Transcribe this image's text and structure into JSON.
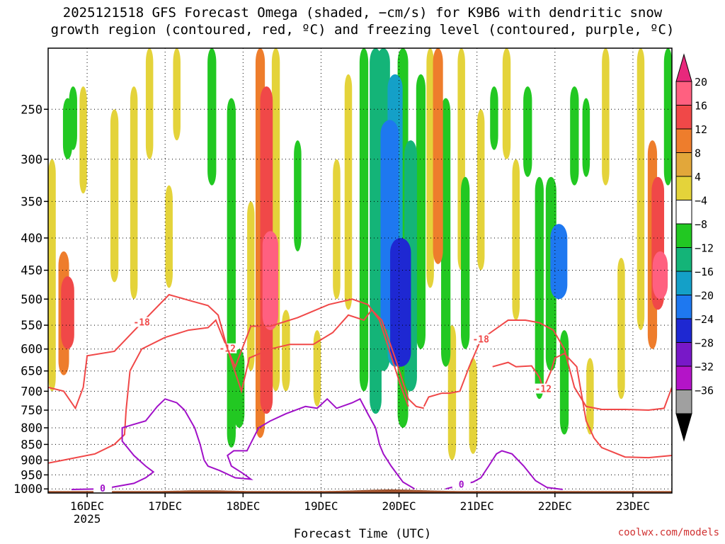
{
  "title": {
    "line1": "2025121518 GFS Forecast Omega (shaded, −cm/s) for K9B6 with dendritic snow",
    "line2": "growth region (contoured, red, ºC) and freezing level (contoured, purple, ºC)"
  },
  "watermark": "coolwx.com/models",
  "chart_data": {
    "type": "heatmap",
    "xlabel": "Forecast Time (UTC)",
    "ylabel": "",
    "x_ticks": [
      {
        "t": 0.5,
        "label": "16DEC",
        "sub": "2025"
      },
      {
        "t": 1.5,
        "label": "17DEC",
        "sub": ""
      },
      {
        "t": 2.5,
        "label": "18DEC",
        "sub": ""
      },
      {
        "t": 3.5,
        "label": "19DEC",
        "sub": ""
      },
      {
        "t": 4.5,
        "label": "20DEC",
        "sub": ""
      },
      {
        "t": 5.5,
        "label": "21DEC",
        "sub": ""
      },
      {
        "t": 6.5,
        "label": "22DEC",
        "sub": ""
      },
      {
        "t": 7.5,
        "label": "23DEC",
        "sub": ""
      }
    ],
    "y_ticks": [
      250,
      300,
      350,
      400,
      450,
      500,
      550,
      600,
      650,
      700,
      750,
      800,
      850,
      900,
      950,
      1000
    ],
    "ylim": [
      1015,
      200
    ],
    "colorbar": {
      "labels": [
        "20",
        "16",
        "12",
        "8",
        "4",
        "−4",
        "−8",
        "−12",
        "−16",
        "−20",
        "−24",
        "−28",
        "−32",
        "−36"
      ],
      "colors": [
        "#ff6080",
        "#f04848",
        "#ee7d2c",
        "#e2a73a",
        "#e4d33a",
        "#ffffff",
        "#22c822",
        "#14b478",
        "#14a0c8",
        "#1e78f0",
        "#1e28d2",
        "#7818c8",
        "#b414c8",
        "#a0a0a0"
      ],
      "top_color": "#e8287c",
      "bottom_color": "#000000"
    },
    "shading": [
      {
        "t": 0.2,
        "p0": 420,
        "p1": 660,
        "v": 10
      },
      {
        "t": 0.25,
        "p0": 460,
        "p1": 600,
        "v": 14
      },
      {
        "t": 0.05,
        "p0": 300,
        "p1": 700,
        "v": 5
      },
      {
        "t": 0.45,
        "p0": 230,
        "p1": 340,
        "v": 5
      },
      {
        "t": 0.25,
        "p0": 240,
        "p1": 300,
        "v": -8
      },
      {
        "t": 0.32,
        "p0": 230,
        "p1": 290,
        "v": -6
      },
      {
        "t": 0.85,
        "p0": 250,
        "p1": 470,
        "v": 6
      },
      {
        "t": 1.1,
        "p0": 230,
        "p1": 500,
        "v": 5
      },
      {
        "t": 1.3,
        "p0": 200,
        "p1": 300,
        "v": 5
      },
      {
        "t": 1.55,
        "p0": 330,
        "p1": 480,
        "v": 5
      },
      {
        "t": 1.65,
        "p0": 200,
        "p1": 280,
        "v": 5
      },
      {
        "t": 2.1,
        "p0": 200,
        "p1": 330,
        "v": -7
      },
      {
        "t": 2.35,
        "p0": 240,
        "p1": 860,
        "v": -7
      },
      {
        "t": 2.45,
        "p0": 600,
        "p1": 800,
        "v": -10
      },
      {
        "t": 2.6,
        "p0": 350,
        "p1": 650,
        "v": 5
      },
      {
        "t": 2.72,
        "p0": 200,
        "p1": 830,
        "v": 8
      },
      {
        "t": 2.8,
        "p0": 230,
        "p1": 760,
        "v": 13
      },
      {
        "t": 2.85,
        "p0": 390,
        "p1": 560,
        "v": 18
      },
      {
        "t": 2.92,
        "p0": 200,
        "p1": 700,
        "v": 6
      },
      {
        "t": 3.05,
        "p0": 520,
        "p1": 700,
        "v": 6
      },
      {
        "t": 3.2,
        "p0": 280,
        "p1": 420,
        "v": -5
      },
      {
        "t": 3.45,
        "p0": 560,
        "p1": 740,
        "v": 5
      },
      {
        "t": 3.7,
        "p0": 300,
        "p1": 500,
        "v": 5
      },
      {
        "t": 3.85,
        "p0": 220,
        "p1": 520,
        "v": 5
      },
      {
        "t": 4.05,
        "p0": 200,
        "p1": 700,
        "v": -7
      },
      {
        "t": 4.2,
        "p0": 200,
        "p1": 760,
        "v": -12
      },
      {
        "t": 4.3,
        "p0": 200,
        "p1": 650,
        "v": -14
      },
      {
        "t": 4.38,
        "p0": 260,
        "p1": 560,
        "v": -22
      },
      {
        "t": 4.45,
        "p0": 220,
        "p1": 640,
        "v": -17
      },
      {
        "t": 4.52,
        "p0": 400,
        "p1": 640,
        "v": -26
      },
      {
        "t": 4.55,
        "p0": 200,
        "p1": 800,
        "v": -10
      },
      {
        "t": 4.65,
        "p0": 280,
        "p1": 700,
        "v": -13
      },
      {
        "t": 4.78,
        "p0": 220,
        "p1": 600,
        "v": -8
      },
      {
        "t": 4.9,
        "p0": 200,
        "p1": 480,
        "v": 5
      },
      {
        "t": 5.0,
        "p0": 200,
        "p1": 440,
        "v": 9
      },
      {
        "t": 5.1,
        "p0": 240,
        "p1": 640,
        "v": -8
      },
      {
        "t": 5.18,
        "p0": 550,
        "p1": 900,
        "v": 6
      },
      {
        "t": 5.3,
        "p0": 200,
        "p1": 450,
        "v": 5
      },
      {
        "t": 5.35,
        "p0": 320,
        "p1": 600,
        "v": -7
      },
      {
        "t": 5.45,
        "p0": 620,
        "p1": 880,
        "v": 6
      },
      {
        "t": 5.55,
        "p0": 250,
        "p1": 450,
        "v": 5
      },
      {
        "t": 5.72,
        "p0": 230,
        "p1": 290,
        "v": -6
      },
      {
        "t": 5.88,
        "p0": 200,
        "p1": 300,
        "v": 6
      },
      {
        "t": 6.0,
        "p0": 300,
        "p1": 540,
        "v": 5
      },
      {
        "t": 6.15,
        "p0": 230,
        "p1": 320,
        "v": -7
      },
      {
        "t": 6.3,
        "p0": 320,
        "p1": 720,
        "v": -7
      },
      {
        "t": 6.45,
        "p0": 320,
        "p1": 650,
        "v": -10
      },
      {
        "t": 6.55,
        "p0": 380,
        "p1": 500,
        "v": -20
      },
      {
        "t": 6.62,
        "p0": 560,
        "p1": 820,
        "v": -7
      },
      {
        "t": 6.75,
        "p0": 230,
        "p1": 330,
        "v": -7
      },
      {
        "t": 6.9,
        "p0": 240,
        "p1": 320,
        "v": -5
      },
      {
        "t": 6.95,
        "p0": 620,
        "p1": 820,
        "v": 5
      },
      {
        "t": 7.15,
        "p0": 200,
        "p1": 330,
        "v": 5
      },
      {
        "t": 7.35,
        "p0": 430,
        "p1": 720,
        "v": 5
      },
      {
        "t": 7.6,
        "p0": 200,
        "p1": 560,
        "v": 5
      },
      {
        "t": 7.75,
        "p0": 280,
        "p1": 600,
        "v": 8
      },
      {
        "t": 7.82,
        "p0": 320,
        "p1": 520,
        "v": 13
      },
      {
        "t": 7.85,
        "p0": 420,
        "p1": 500,
        "v": 17
      },
      {
        "t": 7.95,
        "p0": 200,
        "p1": 330,
        "v": -6
      }
    ],
    "contours": [
      {
        "label": "-12",
        "color": "#f04848",
        "label_at": 12,
        "points": [
          [
            0.0,
            910
          ],
          [
            0.2,
            900
          ],
          [
            0.6,
            880
          ],
          [
            0.85,
            850
          ],
          [
            0.98,
            820
          ],
          [
            1.0,
            750
          ],
          [
            1.05,
            650
          ],
          [
            1.2,
            600
          ],
          [
            1.5,
            575
          ],
          [
            1.8,
            560
          ],
          [
            2.05,
            555
          ],
          [
            2.15,
            540
          ],
          [
            2.3,
            600
          ],
          [
            2.48,
            700
          ],
          [
            2.58,
            620
          ],
          [
            2.85,
            600
          ],
          [
            3.1,
            590
          ],
          [
            3.4,
            590
          ],
          [
            3.65,
            565
          ],
          [
            3.85,
            530
          ],
          [
            4.05,
            540
          ],
          [
            4.15,
            520
          ],
          [
            4.28,
            540
          ],
          [
            4.45,
            620
          ],
          [
            4.62,
            720
          ],
          [
            4.72,
            740
          ],
          [
            4.82,
            745
          ]
        ]
      },
      {
        "label": "-18",
        "color": "#f04848",
        "label_at": 6,
        "points": [
          [
            0.0,
            690
          ],
          [
            0.2,
            700
          ],
          [
            0.35,
            745
          ],
          [
            0.45,
            690
          ],
          [
            0.5,
            615
          ],
          [
            0.85,
            605
          ],
          [
            1.2,
            545
          ],
          [
            1.55,
            492
          ],
          [
            1.8,
            502
          ],
          [
            2.05,
            512
          ],
          [
            2.18,
            530
          ],
          [
            2.3,
            600
          ],
          [
            2.4,
            640
          ],
          [
            2.6,
            552
          ],
          [
            2.85,
            552
          ],
          [
            3.2,
            535
          ],
          [
            3.6,
            510
          ],
          [
            3.9,
            500
          ],
          [
            4.1,
            510
          ],
          [
            4.25,
            540
          ],
          [
            4.38,
            605
          ],
          [
            4.52,
            685
          ],
          [
            4.62,
            740
          ]
        ]
      },
      {
        "label": "-18",
        "color": "#f04848",
        "label_at": 6,
        "points": [
          [
            4.82,
            740
          ],
          [
            4.88,
            715
          ],
          [
            5.05,
            705
          ],
          [
            5.15,
            705
          ],
          [
            5.28,
            700
          ],
          [
            5.4,
            640
          ],
          [
            5.55,
            580
          ],
          [
            5.7,
            562
          ],
          [
            5.9,
            540
          ],
          [
            6.12,
            540
          ],
          [
            6.3,
            545
          ],
          [
            6.48,
            560
          ],
          [
            6.62,
            600
          ],
          [
            6.75,
            690
          ],
          [
            6.9,
            740
          ],
          [
            7.1,
            748
          ],
          [
            7.4,
            748
          ],
          [
            7.7,
            750
          ],
          [
            7.9,
            745
          ],
          [
            8.0,
            690
          ]
        ]
      },
      {
        "label": "-12",
        "color": "#f04848",
        "label_at": 5,
        "points": [
          [
            5.7,
            640
          ],
          [
            5.9,
            630
          ],
          [
            6.0,
            640
          ],
          [
            6.2,
            638
          ],
          [
            6.3,
            665
          ],
          [
            6.35,
            695
          ],
          [
            6.45,
            650
          ],
          [
            6.5,
            620
          ],
          [
            6.62,
            610
          ],
          [
            6.78,
            640
          ],
          [
            6.9,
            780
          ],
          [
            7.0,
            830
          ],
          [
            7.1,
            860
          ],
          [
            7.4,
            890
          ],
          [
            7.7,
            892
          ],
          [
            8.0,
            885
          ]
        ]
      },
      {
        "label": "0",
        "color": "#a010c8",
        "label_at": 1,
        "points": [
          [
            0.3,
            1002
          ],
          [
            0.7,
            1000
          ],
          [
            1.1,
            980
          ],
          [
            1.25,
            960
          ],
          [
            1.35,
            940
          ],
          [
            1.25,
            920
          ],
          [
            1.1,
            885
          ],
          [
            0.95,
            840
          ],
          [
            0.95,
            800
          ],
          [
            1.1,
            790
          ],
          [
            1.25,
            780
          ],
          [
            1.4,
            740
          ],
          [
            1.5,
            720
          ],
          [
            1.65,
            730
          ],
          [
            1.75,
            750
          ],
          [
            1.88,
            800
          ],
          [
            1.95,
            850
          ],
          [
            2.0,
            900
          ],
          [
            2.05,
            920
          ],
          [
            2.2,
            935
          ],
          [
            2.4,
            960
          ],
          [
            2.6,
            965
          ],
          [
            2.5,
            945
          ],
          [
            2.35,
            920
          ],
          [
            2.3,
            885
          ],
          [
            2.38,
            870
          ],
          [
            2.55,
            870
          ],
          [
            2.7,
            800
          ],
          [
            2.85,
            780
          ],
          [
            3.05,
            760
          ],
          [
            3.3,
            740
          ],
          [
            3.45,
            745
          ],
          [
            3.58,
            720
          ],
          [
            3.7,
            745
          ],
          [
            3.9,
            730
          ],
          [
            4.0,
            720
          ],
          [
            4.1,
            760
          ],
          [
            4.2,
            800
          ],
          [
            4.25,
            850
          ],
          [
            4.3,
            880
          ],
          [
            4.4,
            920
          ],
          [
            4.55,
            975
          ],
          [
            4.7,
            1000
          ]
        ]
      },
      {
        "label": "0",
        "color": "#a010c8",
        "label_at": 1,
        "points": [
          [
            5.1,
            1000
          ],
          [
            5.3,
            985
          ],
          [
            5.45,
            975
          ],
          [
            5.55,
            960
          ],
          [
            5.65,
            920
          ],
          [
            5.75,
            880
          ],
          [
            5.82,
            870
          ],
          [
            5.95,
            880
          ],
          [
            6.1,
            920
          ],
          [
            6.25,
            970
          ],
          [
            6.4,
            995
          ],
          [
            6.6,
            1002
          ]
        ]
      }
    ]
  }
}
